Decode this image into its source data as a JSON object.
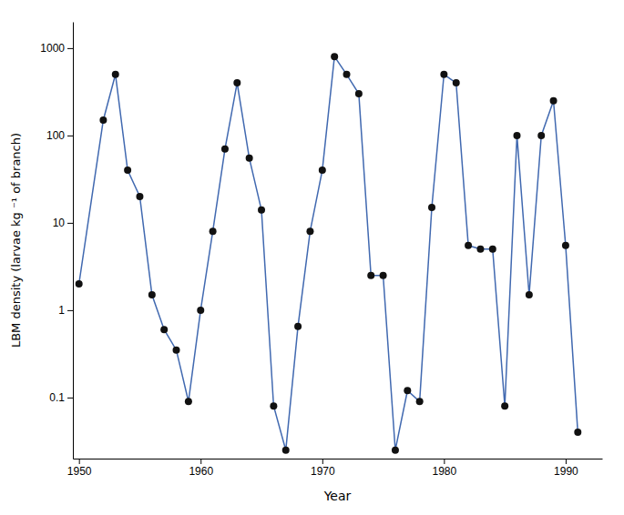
{
  "chart_data": {
    "type": "line",
    "log": "y",
    "xlabel": "Year",
    "ylabel": "LBM density (larvae kg ⁻¹ of branch)",
    "x": [
      1950,
      1952,
      1953,
      1954,
      1955,
      1956,
      1957,
      1958,
      1959,
      1960,
      1961,
      1962,
      1963,
      1964,
      1965,
      1966,
      1967,
      1968,
      1969,
      1970,
      1971,
      1972,
      1973,
      1974,
      1975,
      1976,
      1977,
      1978,
      1979,
      1980,
      1981,
      1982,
      1983,
      1984,
      1985,
      1986,
      1987,
      1988,
      1989,
      1990,
      1991
    ],
    "series": [
      {
        "type": "line",
        "color": "#4169B0",
        "values": [
          2.0,
          150.0,
          500.0,
          40.0,
          20.0,
          1.5,
          0.6,
          0.35,
          0.09,
          1.0,
          8.0,
          70.0,
          400.0,
          55.0,
          14.0,
          0.08,
          0.025,
          0.65,
          8.0,
          40.0,
          800.0,
          500.0,
          300.0,
          2.5,
          2.5,
          0.025,
          0.12,
          0.09,
          15.0,
          500.0,
          400.0,
          5.5,
          5.0,
          5.0,
          0.08,
          100.0,
          1.5,
          100.0,
          250.0,
          5.5,
          0.04
        ]
      },
      {
        "type": "scatter",
        "color": "#111111",
        "marker": "circle",
        "values": [
          2.0,
          150.0,
          500.0,
          40.0,
          20.0,
          1.5,
          0.6,
          0.35,
          0.09,
          1.0,
          8.0,
          70.0,
          400.0,
          55.0,
          14.0,
          0.08,
          0.025,
          0.65,
          8.0,
          40.0,
          800.0,
          500.0,
          300.0,
          2.5,
          2.5,
          0.025,
          0.12,
          0.09,
          15.0,
          500.0,
          400.0,
          5.5,
          5.0,
          5.0,
          0.08,
          100.0,
          1.5,
          100.0,
          250.0,
          5.5,
          0.04
        ]
      }
    ],
    "xlim": [
      1949.5,
      1993
    ],
    "ylim": [
      0.02,
      2000
    ],
    "xticks": [
      1950,
      1960,
      1970,
      1980,
      1990
    ],
    "yticks": [
      0.1,
      1,
      10,
      100,
      1000
    ],
    "grid": false
  }
}
